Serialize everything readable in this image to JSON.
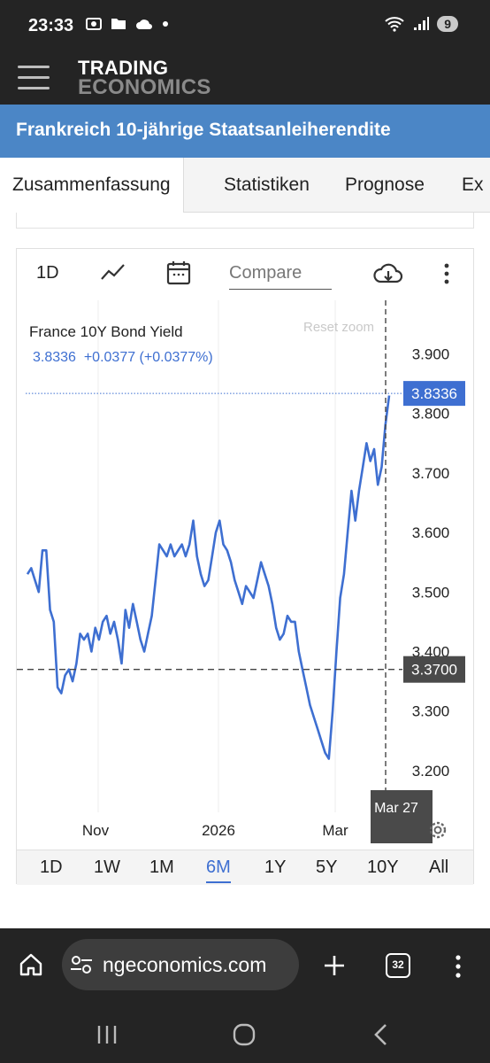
{
  "status": {
    "time": "23:33",
    "badge": "9"
  },
  "brand": {
    "line1": "TRADING",
    "line2": "ECONOMICS"
  },
  "page_title": "Frankreich 10-jährige Staatsanleiherendite",
  "tabs": [
    "Zusammenfassung",
    "Statistiken",
    "Prognose",
    "Ex"
  ],
  "toolbar": {
    "interval": "1D",
    "compare_placeholder": "Compare"
  },
  "chart_data": {
    "type": "line",
    "title": "France 10Y Bond Yield",
    "quote": "3.8336  +0.0377 (+0.0377%)",
    "reset_zoom": "Reset zoom",
    "last_value_label": "3.8336",
    "crosshair_value_label": "3.3700",
    "crosshair_value": 3.37,
    "crosshair_date_label": "Mar 27",
    "x_ticks": [
      "Nov",
      "2026",
      "Mar"
    ],
    "y_ticks": [
      "3.900",
      "3.800",
      "3.700",
      "3.600",
      "3.500",
      "3.400",
      "3.300",
      "3.200"
    ],
    "ylim": [
      3.13,
      3.99
    ],
    "line_color": "#3e6fd1",
    "series": [
      {
        "values": [
          3.53,
          3.54,
          3.52,
          3.5,
          3.57,
          3.57,
          3.47,
          3.45,
          3.34,
          3.33,
          3.36,
          3.37,
          3.35,
          3.38,
          3.43,
          3.42,
          3.43,
          3.4,
          3.44,
          3.42,
          3.45,
          3.46,
          3.43,
          3.45,
          3.42,
          3.38,
          3.47,
          3.44,
          3.48,
          3.45,
          3.42,
          3.4,
          3.43,
          3.46,
          3.52,
          3.58,
          3.57,
          3.56,
          3.58,
          3.56,
          3.57,
          3.58,
          3.56,
          3.58,
          3.62,
          3.56,
          3.53,
          3.51,
          3.52,
          3.56,
          3.6,
          3.62,
          3.58,
          3.57,
          3.55,
          3.52,
          3.5,
          3.48,
          3.51,
          3.5,
          3.49,
          3.52,
          3.55,
          3.53,
          3.51,
          3.48,
          3.44,
          3.42,
          3.43,
          3.46,
          3.45,
          3.45,
          3.4,
          3.37,
          3.34,
          3.31,
          3.29,
          3.27,
          3.25,
          3.23,
          3.22,
          3.3,
          3.4,
          3.49,
          3.53,
          3.6,
          3.67,
          3.62,
          3.67,
          3.71,
          3.75,
          3.72,
          3.74,
          3.68,
          3.71,
          3.78,
          3.83
        ]
      }
    ]
  },
  "ranges": [
    "1D",
    "1W",
    "1M",
    "6M",
    "1Y",
    "5Y",
    "10Y",
    "All"
  ],
  "active_range": "6M",
  "browser": {
    "url": "ngeconomics.com",
    "tab_count": "32"
  }
}
